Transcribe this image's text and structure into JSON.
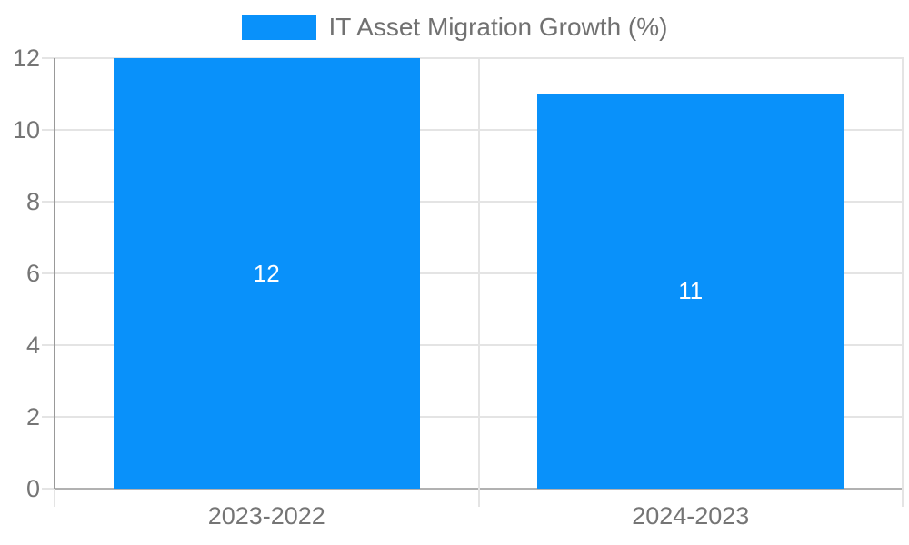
{
  "chart_data": {
    "type": "bar",
    "title": "",
    "legend": {
      "position": "top",
      "label": "IT Asset Migration Growth (%)"
    },
    "categories": [
      "2023-2022",
      "2024-2023"
    ],
    "values": [
      12,
      11
    ],
    "bar_labels": [
      "12",
      "11"
    ],
    "xlabel": "",
    "ylabel": "",
    "ylim": [
      0,
      12
    ],
    "yticks": [
      0,
      2,
      4,
      6,
      8,
      10,
      12
    ],
    "grid": true,
    "colors": {
      "bar": "#0991fa",
      "gridline": "#e4e4e4",
      "baseline": "#b1b1b1",
      "axis_line": "#999999",
      "axis_text": "#757575",
      "legend_text": "#717171",
      "bar_label_text": "#ffffff",
      "background": "#ffffff"
    }
  }
}
